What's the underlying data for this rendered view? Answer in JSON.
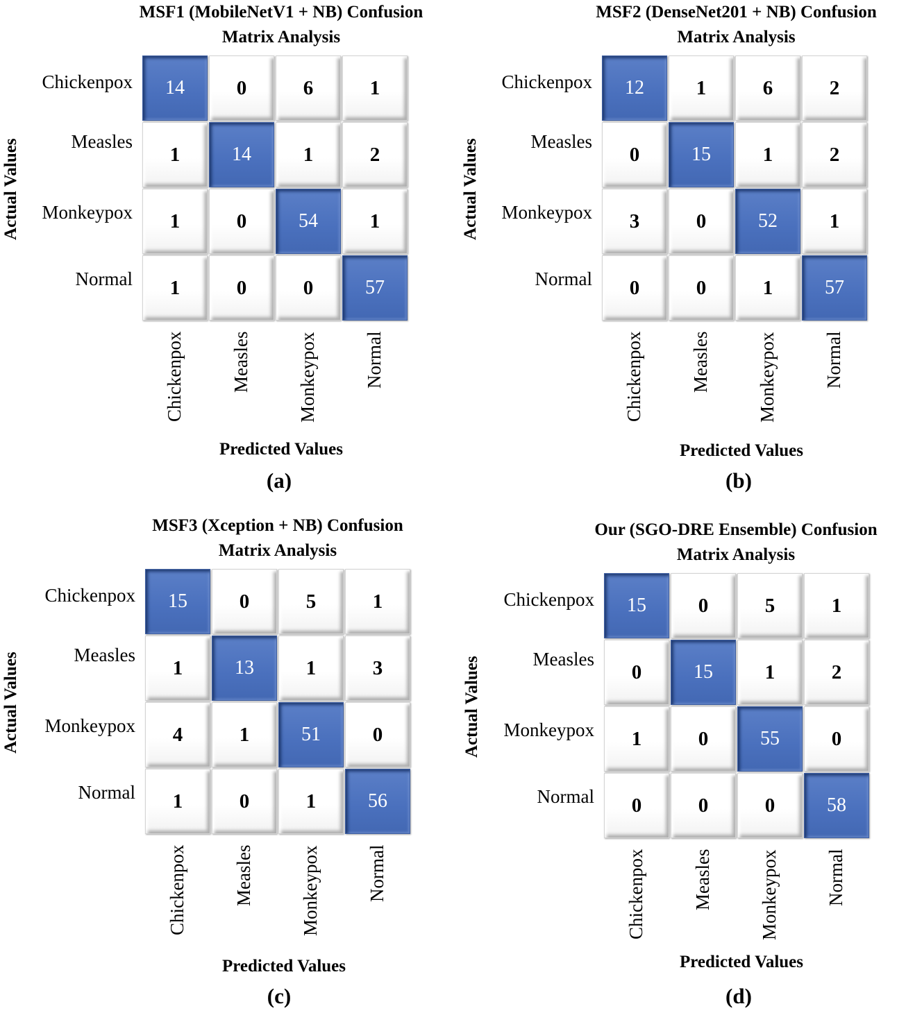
{
  "chart_data": [
    {
      "type": "heatmap",
      "title": "MSF1 (MobileNetV1 + NB) Confusion Matrix Analysis",
      "title_lines": [
        "MSF1 (MobileNetV1 + NB) Confusion",
        "Matrix Analysis"
      ],
      "row_labels": [
        "Chickenpox",
        "Measles",
        "Monkeypox",
        "Normal"
      ],
      "col_labels": [
        "Chickenpox",
        "Measles",
        "Monkeypox",
        "Normal"
      ],
      "values": [
        [
          14,
          0,
          6,
          1
        ],
        [
          1,
          14,
          1,
          2
        ],
        [
          1,
          0,
          54,
          1
        ],
        [
          1,
          0,
          0,
          57
        ]
      ],
      "ylabel": "Actual Values",
      "xlabel": "Predicted Values",
      "panel_label": "(a)",
      "highlight": "#4a70bd"
    },
    {
      "type": "heatmap",
      "title": "MSF2 (DenseNet201 + NB) Confusion Matrix Analysis",
      "title_lines": [
        "MSF2 (DenseNet201 + NB) Confusion",
        "Matrix Analysis"
      ],
      "row_labels": [
        "Chickenpox",
        "Measles",
        "Monkeypox",
        "Normal"
      ],
      "col_labels": [
        "Chickenpox",
        "Measles",
        "Monkeypox",
        "Normal"
      ],
      "values": [
        [
          12,
          1,
          6,
          2
        ],
        [
          0,
          15,
          1,
          2
        ],
        [
          3,
          0,
          52,
          1
        ],
        [
          0,
          0,
          1,
          57
        ]
      ],
      "ylabel": "Actual Values",
      "xlabel": "Predicted Values",
      "panel_label": "(b)",
      "highlight": "#4a70bd"
    },
    {
      "type": "heatmap",
      "title": "MSF3 (Xception + NB) Confusion Matrix Analysis",
      "title_lines": [
        "MSF3 (Xception + NB) Confusion",
        "Matrix Analysis"
      ],
      "row_labels": [
        "Chickenpox",
        "Measles",
        "Monkeypox",
        "Normal"
      ],
      "col_labels": [
        "Chickenpox",
        "Measles",
        "Monkeypox",
        "Normal"
      ],
      "values": [
        [
          15,
          0,
          5,
          1
        ],
        [
          1,
          13,
          1,
          3
        ],
        [
          4,
          1,
          51,
          0
        ],
        [
          1,
          0,
          1,
          56
        ]
      ],
      "ylabel": "Actual Values",
      "xlabel": "Predicted Values",
      "panel_label": "(c)",
      "highlight": "#4a70bd"
    },
    {
      "type": "heatmap",
      "title": "Our (SGO-DRE Ensemble) Confusion Matrix Analysis",
      "title_lines": [
        "Our (SGO-DRE Ensemble) Confusion",
        "Matrix Analysis"
      ],
      "row_labels": [
        "Chickenpox",
        "Measles",
        "Monkeypox",
        "Normal"
      ],
      "col_labels": [
        "Chickenpox",
        "Measles",
        "Monkeypox",
        "Normal"
      ],
      "values": [
        [
          15,
          0,
          5,
          1
        ],
        [
          0,
          15,
          1,
          2
        ],
        [
          1,
          0,
          55,
          0
        ],
        [
          0,
          0,
          0,
          58
        ]
      ],
      "ylabel": "Actual Values",
      "xlabel": "Predicted Values",
      "panel_label": "(d)",
      "highlight": "#4a70bd"
    }
  ]
}
